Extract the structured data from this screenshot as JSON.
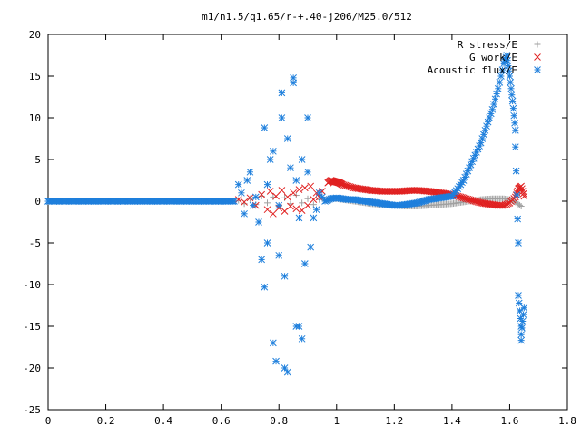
{
  "chart_data": {
    "type": "scatter",
    "title": "m1/n1.5/q1.65/r-+.40-j206/M25.0/512",
    "xlabel": "",
    "ylabel": "",
    "xlim": [
      0,
      1.8
    ],
    "ylim": [
      -25,
      20
    ],
    "xticks": [
      0,
      0.2,
      0.4,
      0.6,
      0.8,
      1,
      1.2,
      1.4,
      1.6,
      1.8
    ],
    "xtick_labels": [
      "0",
      "0.2",
      "0.4",
      "0.6",
      "0.8",
      "1",
      "1.2",
      "1.4",
      "1.6",
      "1.8"
    ],
    "yticks": [
      -25,
      -20,
      -15,
      -10,
      -5,
      0,
      5,
      10,
      15,
      20
    ],
    "ytick_labels": [
      "-25",
      "-20",
      "-15",
      "-10",
      "-5",
      "0",
      "5",
      "10",
      "15",
      "20"
    ],
    "grid": false,
    "legend_position": "top-right",
    "series": [
      {
        "name": "R stress/E",
        "color": "#a0a0a0",
        "marker": "plus",
        "points": [
          [
            0.66,
            0.1
          ],
          [
            0.68,
            -0.3
          ],
          [
            0.7,
            0.3
          ],
          [
            0.72,
            -0.4
          ],
          [
            0.74,
            0.6
          ],
          [
            0.76,
            -0.2
          ],
          [
            0.78,
            0.5
          ],
          [
            0.8,
            -0.6
          ],
          [
            0.82,
            0.4
          ],
          [
            0.84,
            -0.3
          ],
          [
            0.86,
            0.7
          ],
          [
            0.88,
            -0.2
          ],
          [
            0.9,
            0.3
          ],
          [
            0.92,
            -0.4
          ],
          [
            0.94,
            0.2
          ],
          [
            0.96,
            0.1
          ],
          [
            0.98,
            0.3
          ],
          [
            1.0,
            0.3
          ],
          [
            1.02,
            0.2
          ],
          [
            1.04,
            0.1
          ],
          [
            1.06,
            0.0
          ],
          [
            1.08,
            -0.1
          ],
          [
            1.1,
            -0.2
          ],
          [
            1.12,
            -0.3
          ],
          [
            1.14,
            -0.35
          ],
          [
            1.16,
            -0.4
          ],
          [
            1.18,
            -0.45
          ],
          [
            1.2,
            -0.5
          ],
          [
            1.22,
            -0.55
          ],
          [
            1.24,
            -0.6
          ],
          [
            1.26,
            -0.6
          ],
          [
            1.28,
            -0.6
          ],
          [
            1.3,
            -0.55
          ],
          [
            1.32,
            -0.5
          ],
          [
            1.34,
            -0.45
          ],
          [
            1.36,
            -0.4
          ],
          [
            1.38,
            -0.35
          ],
          [
            1.4,
            -0.3
          ],
          [
            1.42,
            -0.2
          ],
          [
            1.44,
            -0.1
          ],
          [
            1.46,
            0.0
          ],
          [
            1.48,
            0.1
          ],
          [
            1.5,
            0.2
          ],
          [
            1.52,
            0.25
          ],
          [
            1.54,
            0.3
          ],
          [
            1.56,
            0.3
          ],
          [
            1.58,
            0.3
          ],
          [
            1.6,
            0.2
          ],
          [
            1.62,
            -0.1
          ],
          [
            1.64,
            -0.6
          ]
        ]
      },
      {
        "name": "G work/E",
        "color": "#e02020",
        "marker": "cross",
        "points": [
          [
            0.66,
            0.2
          ],
          [
            0.68,
            -0.1
          ],
          [
            0.7,
            0.4
          ],
          [
            0.72,
            -0.5
          ],
          [
            0.74,
            0.8
          ],
          [
            0.76,
            -1.0
          ],
          [
            0.77,
            1.2
          ],
          [
            0.78,
            -1.5
          ],
          [
            0.79,
            0.6
          ],
          [
            0.8,
            -0.8
          ],
          [
            0.81,
            1.3
          ],
          [
            0.82,
            -1.2
          ],
          [
            0.83,
            0.5
          ],
          [
            0.84,
            -0.6
          ],
          [
            0.85,
            1.0
          ],
          [
            0.86,
            -0.9
          ],
          [
            0.87,
            1.4
          ],
          [
            0.88,
            -1.1
          ],
          [
            0.89,
            1.6
          ],
          [
            0.9,
            -0.5
          ],
          [
            0.91,
            1.8
          ],
          [
            0.92,
            0.2
          ],
          [
            0.93,
            1.0
          ],
          [
            0.94,
            0.5
          ],
          [
            0.95,
            1.2
          ],
          [
            0.97,
            2.2
          ],
          [
            0.98,
            2.5
          ],
          [
            0.99,
            2.4
          ],
          [
            1.0,
            2.3
          ],
          [
            1.01,
            2.2
          ],
          [
            1.02,
            2.0
          ],
          [
            1.04,
            1.8
          ],
          [
            1.06,
            1.6
          ],
          [
            1.08,
            1.5
          ],
          [
            1.1,
            1.4
          ],
          [
            1.12,
            1.3
          ],
          [
            1.14,
            1.25
          ],
          [
            1.16,
            1.2
          ],
          [
            1.18,
            1.2
          ],
          [
            1.2,
            1.2
          ],
          [
            1.22,
            1.2
          ],
          [
            1.24,
            1.25
          ],
          [
            1.26,
            1.3
          ],
          [
            1.28,
            1.3
          ],
          [
            1.3,
            1.25
          ],
          [
            1.32,
            1.2
          ],
          [
            1.34,
            1.1
          ],
          [
            1.36,
            1.0
          ],
          [
            1.38,
            0.9
          ],
          [
            1.4,
            0.8
          ],
          [
            1.42,
            0.6
          ],
          [
            1.44,
            0.4
          ],
          [
            1.46,
            0.2
          ],
          [
            1.48,
            0.0
          ],
          [
            1.5,
            -0.2
          ],
          [
            1.52,
            -0.3
          ],
          [
            1.54,
            -0.4
          ],
          [
            1.56,
            -0.5
          ],
          [
            1.58,
            -0.5
          ],
          [
            1.6,
            -0.2
          ],
          [
            1.62,
            0.5
          ],
          [
            1.63,
            1.5
          ],
          [
            1.64,
            1.8
          ],
          [
            1.65,
            0.6
          ]
        ]
      },
      {
        "name": "Acoustic flux/E",
        "color": "#1e7fdc",
        "marker": "star",
        "points": [
          [
            0.0,
            0
          ],
          [
            0.02,
            0
          ],
          [
            0.04,
            0
          ],
          [
            0.06,
            0
          ],
          [
            0.08,
            0
          ],
          [
            0.1,
            0
          ],
          [
            0.12,
            0
          ],
          [
            0.14,
            0
          ],
          [
            0.16,
            0
          ],
          [
            0.18,
            0
          ],
          [
            0.2,
            0
          ],
          [
            0.22,
            0
          ],
          [
            0.24,
            0
          ],
          [
            0.26,
            0
          ],
          [
            0.28,
            0
          ],
          [
            0.3,
            0
          ],
          [
            0.32,
            0
          ],
          [
            0.34,
            0
          ],
          [
            0.36,
            0
          ],
          [
            0.38,
            0
          ],
          [
            0.4,
            0
          ],
          [
            0.42,
            0
          ],
          [
            0.44,
            0
          ],
          [
            0.46,
            0
          ],
          [
            0.48,
            0
          ],
          [
            0.5,
            0
          ],
          [
            0.52,
            0
          ],
          [
            0.54,
            0
          ],
          [
            0.56,
            0
          ],
          [
            0.58,
            0
          ],
          [
            0.6,
            0
          ],
          [
            0.62,
            0
          ],
          [
            0.64,
            0
          ],
          [
            0.66,
            2.0
          ],
          [
            0.67,
            1.0
          ],
          [
            0.68,
            -1.5
          ],
          [
            0.69,
            2.5
          ],
          [
            0.7,
            3.5
          ],
          [
            0.71,
            -0.5
          ],
          [
            0.72,
            0.5
          ],
          [
            0.73,
            -2.5
          ],
          [
            0.74,
            -7.0
          ],
          [
            0.75,
            -10.3
          ],
          [
            0.75,
            8.8
          ],
          [
            0.76,
            -5.0
          ],
          [
            0.76,
            2.0
          ],
          [
            0.77,
            5.0
          ],
          [
            0.78,
            6.0
          ],
          [
            0.78,
            -17.0
          ],
          [
            0.79,
            -19.2
          ],
          [
            0.8,
            -6.5
          ],
          [
            0.8,
            -0.5
          ],
          [
            0.81,
            13.0
          ],
          [
            0.81,
            10.0
          ],
          [
            0.82,
            -9.0
          ],
          [
            0.82,
            -20.0
          ],
          [
            0.83,
            -20.5
          ],
          [
            0.83,
            7.5
          ],
          [
            0.84,
            4.0
          ],
          [
            0.85,
            14.8
          ],
          [
            0.85,
            14.2
          ],
          [
            0.86,
            -15.0
          ],
          [
            0.86,
            2.5
          ],
          [
            0.87,
            -15.0
          ],
          [
            0.87,
            -2.0
          ],
          [
            0.88,
            5.0
          ],
          [
            0.88,
            -16.5
          ],
          [
            0.89,
            -7.5
          ],
          [
            0.9,
            10.0
          ],
          [
            0.9,
            3.5
          ],
          [
            0.91,
            -5.5
          ],
          [
            0.92,
            -2.0
          ],
          [
            0.93,
            -1.0
          ],
          [
            0.94,
            1.0
          ],
          [
            0.95,
            0.5
          ],
          [
            0.96,
            0.0
          ],
          [
            0.98,
            0.3
          ],
          [
            1.0,
            0.4
          ],
          [
            1.02,
            0.3
          ],
          [
            1.04,
            0.2
          ],
          [
            1.06,
            0.2
          ],
          [
            1.08,
            0.1
          ],
          [
            1.1,
            0.0
          ],
          [
            1.12,
            -0.1
          ],
          [
            1.14,
            -0.2
          ],
          [
            1.16,
            -0.3
          ],
          [
            1.18,
            -0.4
          ],
          [
            1.2,
            -0.5
          ],
          [
            1.22,
            -0.5
          ],
          [
            1.24,
            -0.4
          ],
          [
            1.26,
            -0.3
          ],
          [
            1.28,
            -0.2
          ],
          [
            1.3,
            0.0
          ],
          [
            1.32,
            0.2
          ],
          [
            1.34,
            0.3
          ],
          [
            1.36,
            0.4
          ],
          [
            1.38,
            0.5
          ],
          [
            1.4,
            0.6
          ],
          [
            1.42,
            1.5
          ],
          [
            1.44,
            2.5
          ],
          [
            1.46,
            4.0
          ],
          [
            1.48,
            5.5
          ],
          [
            1.5,
            7.0
          ],
          [
            1.52,
            9.0
          ],
          [
            1.54,
            11.0
          ],
          [
            1.56,
            13.5
          ],
          [
            1.58,
            16.5
          ],
          [
            1.59,
            17.5
          ],
          [
            1.6,
            15.0
          ],
          [
            1.61,
            12.0
          ],
          [
            1.62,
            8.5
          ],
          [
            1.62,
            6.5
          ],
          [
            1.63,
            -5.0
          ],
          [
            1.63,
            -11.3
          ],
          [
            1.64,
            -15.0
          ],
          [
            1.64,
            -16.0
          ],
          [
            1.65,
            -12.8
          ],
          [
            1.64,
            -16.7
          ]
        ]
      }
    ]
  }
}
